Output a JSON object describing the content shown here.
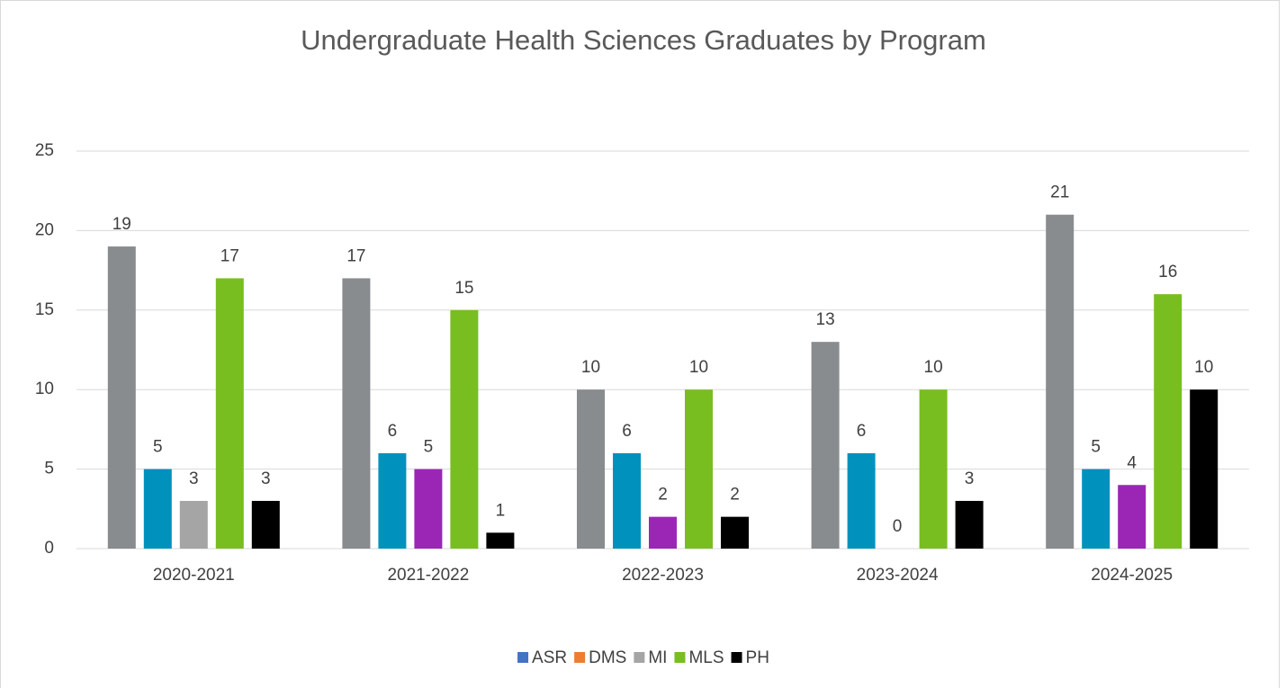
{
  "chart_data": {
    "type": "bar",
    "title": "Undergraduate Health Sciences Graduates by Program",
    "categories": [
      "2020-2021",
      "2021-2022",
      "2022-2023",
      "2023-2024",
      "2024-2025"
    ],
    "series": [
      {
        "name": "ASR",
        "color": "#4472c4",
        "bar_colors": [
          "#898c8e",
          "#898c8e",
          "#898c8e",
          "#898c8e",
          "#898c8e"
        ],
        "values": [
          19,
          17,
          10,
          13,
          21
        ]
      },
      {
        "name": "DMS",
        "color": "#ed7d31",
        "bar_colors": [
          "#0092bd",
          "#0092bd",
          "#0092bd",
          "#0092bd",
          "#0092bd"
        ],
        "values": [
          5,
          6,
          6,
          6,
          5
        ]
      },
      {
        "name": "MI",
        "color": "#a5a5a5",
        "bar_colors": [
          "#a5a5a5",
          "#9b26b6",
          "#9b26b6",
          "#9b26b6",
          "#9b26b6"
        ],
        "values": [
          3,
          5,
          2,
          0,
          4
        ]
      },
      {
        "name": "MLS",
        "color": "#78be20",
        "bar_colors": [
          "#78be20",
          "#78be20",
          "#78be20",
          "#78be20",
          "#78be20"
        ],
        "values": [
          17,
          15,
          10,
          10,
          16
        ]
      },
      {
        "name": "PH",
        "color": "#000000",
        "bar_colors": [
          "#000000",
          "#000000",
          "#000000",
          "#000000",
          "#000000"
        ],
        "values": [
          3,
          1,
          2,
          3,
          10
        ]
      }
    ],
    "ylim": [
      0,
      25
    ],
    "yticks": [
      0,
      5,
      10,
      15,
      20,
      25
    ],
    "grid": true,
    "legend": "bottom"
  }
}
